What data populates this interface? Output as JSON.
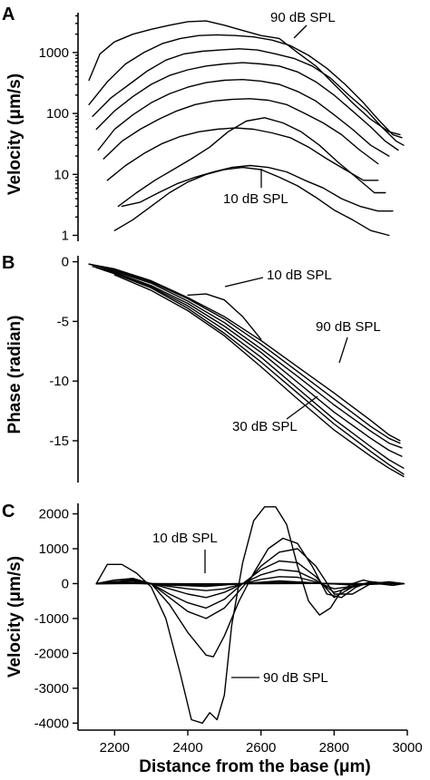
{
  "chart_data": [
    {
      "panel": "A",
      "type": "line",
      "ylabel": "Velocity (μm/s)",
      "yscale": "log",
      "ylim": [
        0.8,
        4500
      ],
      "yticks": [
        1,
        10,
        100,
        1000
      ],
      "ytick_labels": [
        "1",
        "10",
        "100",
        "1000"
      ],
      "xlim": [
        2100,
        3000
      ],
      "grid": false,
      "annotations": [
        {
          "text": "90 dB SPL",
          "x": 2600,
          "y": 1500
        },
        {
          "text": "10 dB SPL",
          "x": 2470,
          "y": 14
        }
      ],
      "series": [
        {
          "x": [
            2130,
            2160,
            2200,
            2250,
            2300,
            2350,
            2400,
            2450,
            2500,
            2550,
            2600,
            2650,
            2700,
            2750,
            2800,
            2850,
            2900,
            2950,
            2980
          ],
          "values": [
            350,
            950,
            1500,
            2000,
            2400,
            2800,
            3200,
            3300,
            2800,
            2300,
            1900,
            1700,
            1000,
            600,
            300,
            150,
            80,
            50,
            45
          ]
        },
        {
          "x": [
            2130,
            2180,
            2230,
            2280,
            2330,
            2380,
            2430,
            2480,
            2530,
            2580,
            2630,
            2680,
            2730,
            2780,
            2830,
            2880,
            2920,
            2960,
            2985
          ],
          "values": [
            140,
            330,
            650,
            1000,
            1400,
            1700,
            1900,
            1950,
            1900,
            1800,
            1600,
            1300,
            900,
            550,
            300,
            150,
            80,
            45,
            40
          ]
        },
        {
          "x": [
            2140,
            2190,
            2240,
            2290,
            2340,
            2390,
            2440,
            2490,
            2540,
            2590,
            2640,
            2690,
            2740,
            2790,
            2840,
            2890,
            2930,
            2970,
            2990
          ],
          "values": [
            90,
            180,
            300,
            500,
            750,
            950,
            1050,
            1100,
            1150,
            1100,
            950,
            800,
            600,
            380,
            200,
            110,
            60,
            35,
            30
          ]
        },
        {
          "x": [
            2150,
            2200,
            2250,
            2300,
            2350,
            2400,
            2450,
            2500,
            2550,
            2600,
            2650,
            2700,
            2750,
            2800,
            2850,
            2900,
            2940,
            2975
          ],
          "values": [
            55,
            110,
            190,
            300,
            420,
            520,
            600,
            650,
            680,
            650,
            600,
            480,
            330,
            200,
            110,
            60,
            35,
            25
          ]
        },
        {
          "x": [
            2155,
            2200,
            2250,
            2300,
            2350,
            2400,
            2450,
            2500,
            2550,
            2600,
            2650,
            2700,
            2750,
            2800,
            2850,
            2900,
            2950
          ],
          "values": [
            25,
            55,
            95,
            150,
            210,
            270,
            320,
            350,
            360,
            340,
            300,
            230,
            160,
            95,
            55,
            30,
            20
          ]
        },
        {
          "x": [
            2170,
            2220,
            2270,
            2320,
            2370,
            2420,
            2470,
            2520,
            2570,
            2620,
            2670,
            2720,
            2770,
            2820,
            2870,
            2920
          ],
          "values": [
            18,
            35,
            55,
            80,
            110,
            140,
            160,
            170,
            175,
            165,
            140,
            100,
            70,
            45,
            25,
            15
          ]
        },
        {
          "x": [
            2180,
            2230,
            2280,
            2330,
            2380,
            2430,
            2480,
            2530,
            2580,
            2630,
            2680,
            2730,
            2780,
            2830,
            2880,
            2920
          ],
          "values": [
            8,
            14,
            22,
            32,
            42,
            50,
            55,
            58,
            55,
            48,
            40,
            28,
            18,
            12,
            8,
            8
          ]
        },
        {
          "x": [
            2210,
            2260,
            2310,
            2360,
            2410,
            2460,
            2510,
            2560,
            2610,
            2660,
            2710,
            2760,
            2810,
            2860,
            2910,
            2940
          ],
          "values": [
            3,
            5,
            8,
            12,
            18,
            28,
            50,
            75,
            85,
            70,
            50,
            30,
            16,
            9,
            5,
            5
          ]
        },
        {
          "x": [
            2220,
            2270,
            2320,
            2370,
            2420,
            2470,
            2520,
            2570,
            2620,
            2670,
            2720,
            2770,
            2820,
            2870,
            2920,
            2960
          ],
          "values": [
            3,
            3.5,
            5,
            7,
            9,
            11,
            13,
            14,
            13,
            11,
            8,
            6,
            4,
            3,
            2.5,
            2.5
          ]
        },
        {
          "x": [
            2200,
            2250,
            2300,
            2350,
            2400,
            2450,
            2500,
            2550,
            2600,
            2650,
            2700,
            2750,
            2800,
            2850,
            2900,
            2950
          ],
          "values": [
            1.2,
            1.8,
            3,
            5,
            7.5,
            10,
            12,
            13,
            12,
            9,
            6.5,
            4.2,
            2.6,
            1.8,
            1.2,
            1
          ]
        }
      ]
    },
    {
      "panel": "B",
      "type": "line",
      "ylabel": "Phase (radian)",
      "ylim": [
        -18.5,
        0.5
      ],
      "yticks": [
        0,
        -5,
        -10,
        -15
      ],
      "ytick_labels": [
        "0",
        "-5",
        "-10",
        "-15"
      ],
      "xlim": [
        2100,
        3000
      ],
      "grid": false,
      "annotations": [
        {
          "text": "10 dB SPL",
          "x": 2540,
          "y": -2.6
        },
        {
          "text": "90 dB SPL",
          "x": 2720,
          "y": -9.8
        },
        {
          "text": "30 dB SPL",
          "x": 2650,
          "y": -13.4
        }
      ],
      "series": [
        {
          "x": [
            2130,
            2200,
            2300,
            2400,
            2500,
            2600,
            2700,
            2800,
            2900,
            2950,
            2980
          ],
          "values": [
            -0.2,
            -0.6,
            -1.6,
            -3.0,
            -4.6,
            -6.6,
            -8.8,
            -11.0,
            -13.3,
            -14.5,
            -15.0
          ]
        },
        {
          "x": [
            2130,
            2200,
            2300,
            2400,
            2500,
            2600,
            2700,
            2800,
            2900,
            2950,
            2980
          ],
          "values": [
            -0.2,
            -0.7,
            -1.7,
            -3.1,
            -4.8,
            -6.9,
            -9.2,
            -11.5,
            -13.8,
            -14.8,
            -15.2
          ]
        },
        {
          "x": [
            2140,
            2200,
            2300,
            2400,
            2500,
            2600,
            2700,
            2800,
            2900,
            2950,
            2985
          ],
          "values": [
            -0.4,
            -0.8,
            -1.8,
            -3.3,
            -5.1,
            -7.3,
            -9.6,
            -12.0,
            -14.2,
            -15.2,
            -15.6
          ]
        },
        {
          "x": [
            2150,
            2200,
            2300,
            2400,
            2500,
            2600,
            2700,
            2800,
            2900,
            2950,
            2985
          ],
          "values": [
            -0.5,
            -0.9,
            -2.0,
            -3.5,
            -5.4,
            -7.6,
            -10.1,
            -12.6,
            -14.8,
            -15.8,
            -16.3
          ]
        },
        {
          "x": [
            2160,
            2200,
            2300,
            2400,
            2500,
            2600,
            2700,
            2800,
            2900,
            2950,
            2990
          ],
          "values": [
            -0.6,
            -1.0,
            -2.1,
            -3.7,
            -5.7,
            -8.0,
            -10.6,
            -13.2,
            -15.5,
            -16.6,
            -17.3
          ]
        },
        {
          "x": [
            2170,
            2200,
            2300,
            2400,
            2500,
            2600,
            2700,
            2800,
            2900,
            2950,
            2990
          ],
          "values": [
            -0.7,
            -1.0,
            -2.2,
            -3.9,
            -6.0,
            -8.4,
            -11.0,
            -13.6,
            -15.9,
            -17.0,
            -17.8
          ]
        },
        {
          "x": [
            2200,
            2300,
            2400,
            2500,
            2600,
            2700,
            2800,
            2900,
            2950,
            2990
          ],
          "values": [
            -1.1,
            -2.4,
            -4.1,
            -6.2,
            -8.8,
            -11.5,
            -14.1,
            -16.3,
            -17.3,
            -18.0
          ]
        },
        {
          "x": [
            2400,
            2450,
            2500,
            2550,
            2600
          ],
          "values": [
            -2.8,
            -2.7,
            -3.2,
            -4.6,
            -6.5
          ]
        }
      ]
    },
    {
      "panel": "C",
      "type": "line",
      "ylabel": "Velocity (μm/s)",
      "xlabel": "Distance from the base (μm)",
      "ylim": [
        -4200,
        2300
      ],
      "yticks": [
        2000,
        1000,
        0,
        -1000,
        -2000,
        -3000,
        -4000
      ],
      "ytick_labels": [
        "2000",
        "1000",
        "0",
        "-1000",
        "-2000",
        "-3000",
        "-4000"
      ],
      "xlim": [
        2100,
        3000
      ],
      "xticks": [
        2200,
        2400,
        2600,
        2800,
        3000
      ],
      "xtick_labels": [
        "2200",
        "2400",
        "2600",
        "2800",
        "3000"
      ],
      "grid": false,
      "annotations": [
        {
          "text": "10 dB SPL",
          "x": 2470,
          "y": 0
        },
        {
          "text": "90 dB SPL",
          "x": 2490,
          "y": -2900
        }
      ],
      "series": [
        {
          "x": [
            2150,
            2180,
            2220,
            2260,
            2300,
            2340,
            2380,
            2410,
            2440,
            2460,
            2480,
            2500,
            2520,
            2550,
            2580,
            2610,
            2640,
            2670,
            2700,
            2730,
            2760,
            2790,
            2820,
            2850,
            2880,
            2920,
            2960,
            2990
          ],
          "values": [
            0,
            550,
            550,
            300,
            -100,
            -1000,
            -2600,
            -3900,
            -4000,
            -3700,
            -3900,
            -3200,
            -1200,
            600,
            1800,
            2200,
            2200,
            1700,
            500,
            -500,
            -900,
            -700,
            -200,
            0,
            100,
            0,
            -50,
            0
          ]
        },
        {
          "x": [
            2150,
            2200,
            2250,
            2300,
            2350,
            2400,
            2450,
            2470,
            2500,
            2540,
            2580,
            2620,
            2660,
            2700,
            2740,
            2780,
            2820,
            2860,
            2900,
            2950,
            2990
          ],
          "values": [
            0,
            100,
            150,
            0,
            -600,
            -1400,
            -2050,
            -2100,
            -1500,
            -500,
            300,
            1000,
            1300,
            1150,
            500,
            -300,
            -400,
            -100,
            50,
            0,
            0
          ]
        },
        {
          "x": [
            2150,
            2200,
            2250,
            2300,
            2350,
            2400,
            2450,
            2500,
            2550,
            2600,
            2650,
            2700,
            2750,
            2800,
            2850,
            2900,
            2950,
            2990
          ],
          "values": [
            0,
            100,
            120,
            0,
            -400,
            -800,
            -1000,
            -700,
            -100,
            500,
            900,
            1000,
            500,
            -300,
            -300,
            0,
            50,
            0
          ]
        },
        {
          "x": [
            2150,
            2200,
            2250,
            2300,
            2350,
            2400,
            2450,
            2500,
            2550,
            2600,
            2650,
            2700,
            2750,
            2800,
            2850,
            2900,
            2950,
            2990
          ],
          "values": [
            0,
            50,
            100,
            0,
            -300,
            -550,
            -700,
            -450,
            0,
            400,
            650,
            600,
            200,
            -400,
            -100,
            50,
            0,
            0
          ]
        },
        {
          "x": [
            2150,
            2200,
            2250,
            2300,
            2350,
            2400,
            2450,
            2500,
            2550,
            2600,
            2650,
            2700,
            2750,
            2800,
            2850,
            2900,
            2950,
            2990
          ],
          "values": [
            0,
            50,
            80,
            0,
            -150,
            -300,
            -400,
            -250,
            0,
            250,
            400,
            350,
            100,
            -250,
            -100,
            50,
            0,
            0
          ]
        },
        {
          "x": [
            2150,
            2200,
            2250,
            2300,
            2350,
            2400,
            2450,
            2500,
            2550,
            2600,
            2650,
            2700,
            2750,
            2800,
            2850,
            2900,
            2950,
            2990
          ],
          "values": [
            0,
            30,
            40,
            0,
            -80,
            -150,
            -200,
            -150,
            0,
            120,
            200,
            180,
            50,
            -150,
            -80,
            30,
            0,
            0
          ]
        },
        {
          "x": [
            2150,
            2250,
            2350,
            2450,
            2550,
            2650,
            2750,
            2850,
            2950,
            2990
          ],
          "values": [
            0,
            20,
            -40,
            -80,
            0,
            80,
            20,
            -40,
            0,
            0
          ]
        },
        {
          "x": [
            2150,
            2250,
            2350,
            2450,
            2550,
            2650,
            2750,
            2850,
            2950,
            2990
          ],
          "values": [
            0,
            10,
            -20,
            -40,
            0,
            40,
            10,
            -20,
            0,
            0
          ]
        },
        {
          "x": [
            2150,
            2250,
            2350,
            2450,
            2550,
            2650,
            2750,
            2850,
            2950,
            2990
          ],
          "values": [
            0,
            5,
            -10,
            -20,
            0,
            20,
            5,
            -10,
            0,
            0
          ]
        },
        {
          "x": [
            2150,
            2300,
            2450,
            2600,
            2750,
            2900,
            2990
          ],
          "values": [
            0,
            2,
            -5,
            0,
            5,
            -2,
            0
          ]
        }
      ]
    }
  ]
}
